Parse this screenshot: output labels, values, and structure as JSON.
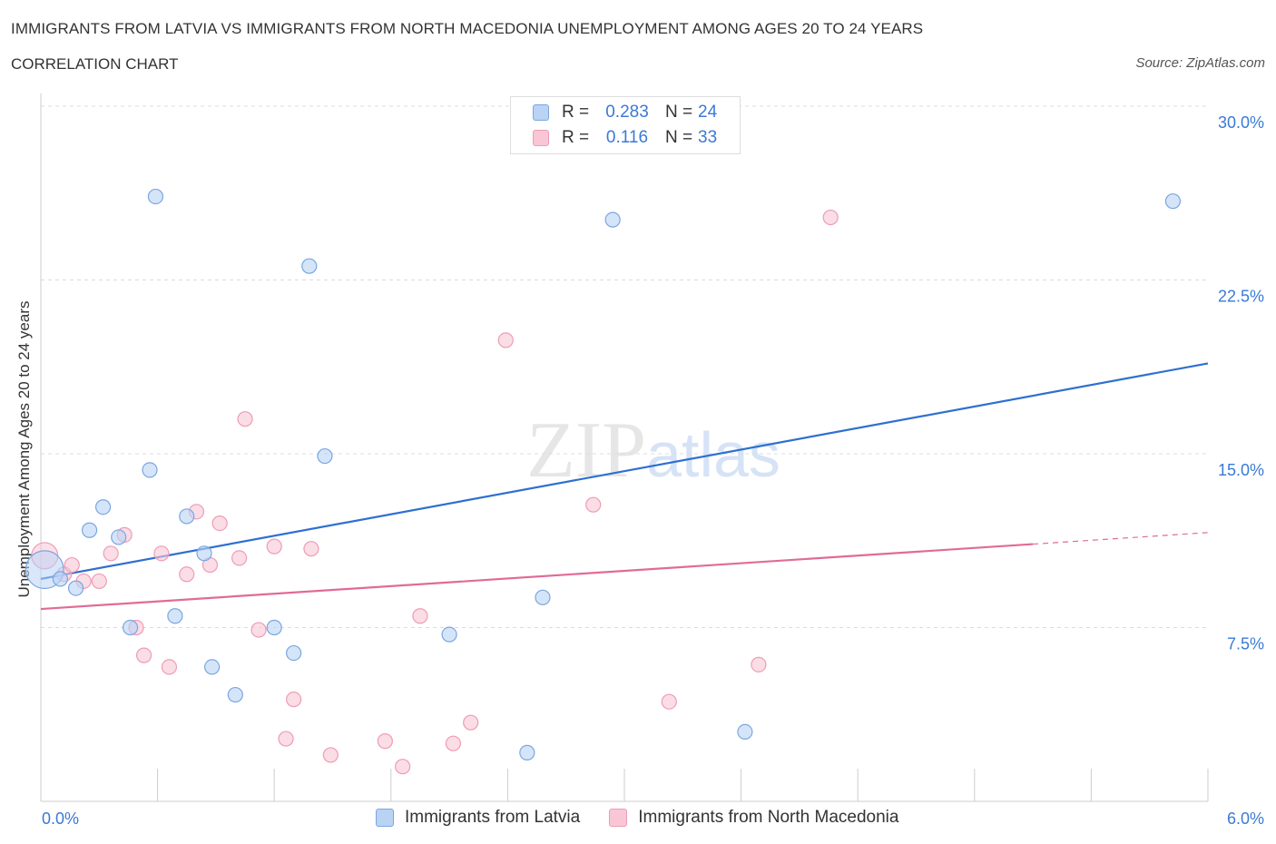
{
  "title": "IMMIGRANTS FROM LATVIA VS IMMIGRANTS FROM NORTH MACEDONIA UNEMPLOYMENT AMONG AGES 20 TO 24 YEARS",
  "subtitle": "CORRELATION CHART",
  "source": "Source: ZipAtlas.com",
  "watermark": "ZIPatlas",
  "legend": {
    "rows": [
      {
        "r_label": "R =",
        "r_value": "0.283",
        "n_label": "N =",
        "n_value": "24"
      },
      {
        "r_label": "R =",
        "r_value": "0.116",
        "n_label": "N =",
        "n_value": "33"
      }
    ]
  },
  "colors": {
    "latvia_fill": "#b9d3f5",
    "latvia_stroke": "#7aa6e0",
    "latvia_line": "#2e6fd1",
    "macedonia_fill": "#f9c6d6",
    "macedonia_stroke": "#ee9cb6",
    "macedonia_line": "#e06b97",
    "tick_label": "#3a7ad5"
  },
  "chart_data": {
    "type": "scatter",
    "title": "IMMIGRANTS FROM LATVIA VS IMMIGRANTS FROM NORTH MACEDONIA UNEMPLOYMENT AMONG AGES 20 TO 24 YEARS",
    "ylabel": "Unemployment Among Ages 20 to 24 years",
    "xlabel": "",
    "xlim": [
      0,
      6
    ],
    "ylim": [
      0,
      30
    ],
    "x_tick_labels": [
      "0.0%",
      "6.0%"
    ],
    "y_ticks": [
      7.5,
      15.0,
      22.5,
      30.0
    ],
    "y_tick_labels": [
      "7.5%",
      "15.0%",
      "22.5%",
      "30.0%"
    ],
    "grid": true,
    "legend_position": "top-center",
    "series": [
      {
        "name": "Immigrants from Latvia",
        "points": [
          [
            0.02,
            10.0,
            2.6
          ],
          [
            0.1,
            9.6,
            1
          ],
          [
            0.18,
            9.2,
            1
          ],
          [
            0.25,
            11.7,
            1
          ],
          [
            0.32,
            12.7,
            1
          ],
          [
            0.4,
            11.4,
            1
          ],
          [
            0.46,
            7.5,
            1
          ],
          [
            0.56,
            14.3,
            1
          ],
          [
            0.59,
            26.1,
            1
          ],
          [
            0.69,
            8.0,
            1
          ],
          [
            0.75,
            12.3,
            1
          ],
          [
            0.84,
            10.7,
            1
          ],
          [
            0.88,
            5.8,
            1
          ],
          [
            1.0,
            4.6,
            1
          ],
          [
            1.2,
            7.5,
            1
          ],
          [
            1.3,
            6.4,
            1
          ],
          [
            1.38,
            23.1,
            1
          ],
          [
            1.46,
            14.9,
            1
          ],
          [
            2.1,
            7.2,
            1
          ],
          [
            2.5,
            2.1,
            1
          ],
          [
            2.58,
            8.8,
            1
          ],
          [
            2.94,
            25.1,
            1
          ],
          [
            3.62,
            3.0,
            1
          ],
          [
            5.82,
            25.9,
            1
          ]
        ],
        "trend": {
          "x": [
            0,
            6
          ],
          "y": [
            9.6,
            18.9
          ]
        }
      },
      {
        "name": "Immigrants from North Macedonia",
        "points": [
          [
            0.02,
            10.6,
            1.8
          ],
          [
            0.12,
            9.8,
            1
          ],
          [
            0.16,
            10.2,
            1
          ],
          [
            0.22,
            9.5,
            1
          ],
          [
            0.3,
            9.5,
            1
          ],
          [
            0.36,
            10.7,
            1
          ],
          [
            0.43,
            11.5,
            1
          ],
          [
            0.49,
            7.5,
            1
          ],
          [
            0.53,
            6.3,
            1
          ],
          [
            0.62,
            10.7,
            1
          ],
          [
            0.66,
            5.8,
            1
          ],
          [
            0.75,
            9.8,
            1
          ],
          [
            0.8,
            12.5,
            1
          ],
          [
            0.87,
            10.2,
            1
          ],
          [
            0.92,
            12.0,
            1
          ],
          [
            1.02,
            10.5,
            1
          ],
          [
            1.05,
            16.5,
            1
          ],
          [
            1.12,
            7.4,
            1
          ],
          [
            1.2,
            11.0,
            1
          ],
          [
            1.26,
            2.7,
            1
          ],
          [
            1.3,
            4.4,
            1
          ],
          [
            1.39,
            10.9,
            1
          ],
          [
            1.49,
            2.0,
            1
          ],
          [
            1.77,
            2.6,
            1
          ],
          [
            1.86,
            1.5,
            1
          ],
          [
            1.95,
            8.0,
            1
          ],
          [
            2.12,
            2.5,
            1
          ],
          [
            2.21,
            3.4,
            1
          ],
          [
            2.39,
            19.9,
            1
          ],
          [
            2.84,
            12.8,
            1
          ],
          [
            3.23,
            4.3,
            1
          ],
          [
            3.69,
            5.9,
            1
          ],
          [
            4.06,
            25.2,
            1
          ]
        ],
        "trend": {
          "x": [
            0,
            5.1
          ],
          "y": [
            8.3,
            11.1
          ]
        },
        "trend_dashed": {
          "x": [
            5.1,
            6
          ],
          "y": [
            11.1,
            11.6
          ]
        }
      }
    ]
  },
  "bottom_legend": [
    {
      "label": "Immigrants from Latvia"
    },
    {
      "label": "Immigrants from North Macedonia"
    }
  ]
}
